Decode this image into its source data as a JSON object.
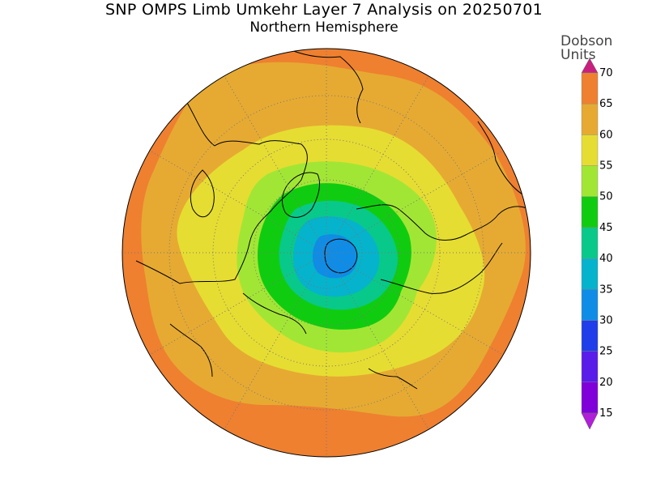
{
  "header": {
    "title": "SNP OMPS Limb Umkehr Layer 7 Analysis on 20250701",
    "subtitle": "Northern Hemisphere"
  },
  "legend": {
    "units_line1": "Dobson",
    "units_line2": "Units",
    "levels": [
      {
        "value": 15,
        "label": "15",
        "color": "#7f00d8"
      },
      {
        "value": 20,
        "label": "20",
        "color": "#5a1ce8"
      },
      {
        "value": 25,
        "label": "25",
        "color": "#1f3de8"
      },
      {
        "value": 30,
        "label": "30",
        "color": "#0f8ce6"
      },
      {
        "value": 35,
        "label": "35",
        "color": "#05b3cc"
      },
      {
        "value": 40,
        "label": "40",
        "color": "#08c98a"
      },
      {
        "value": 45,
        "label": "45",
        "color": "#10cc10"
      },
      {
        "value": 50,
        "label": "50",
        "color": "#a2e635"
      },
      {
        "value": 55,
        "label": "55",
        "color": "#e6dd32"
      },
      {
        "value": 60,
        "label": "60",
        "color": "#e6aa32"
      },
      {
        "value": 65,
        "label": "65",
        "color": "#ee8030"
      },
      {
        "value": 70,
        "label": "70",
        "color": "#e81a1a"
      }
    ],
    "top_arrow_color": "#c8207f",
    "bottom_arrow_color": "#b020d8"
  },
  "map": {
    "projection": "polar-stereographic",
    "hemisphere": "north",
    "gridlines": "dotted"
  }
}
